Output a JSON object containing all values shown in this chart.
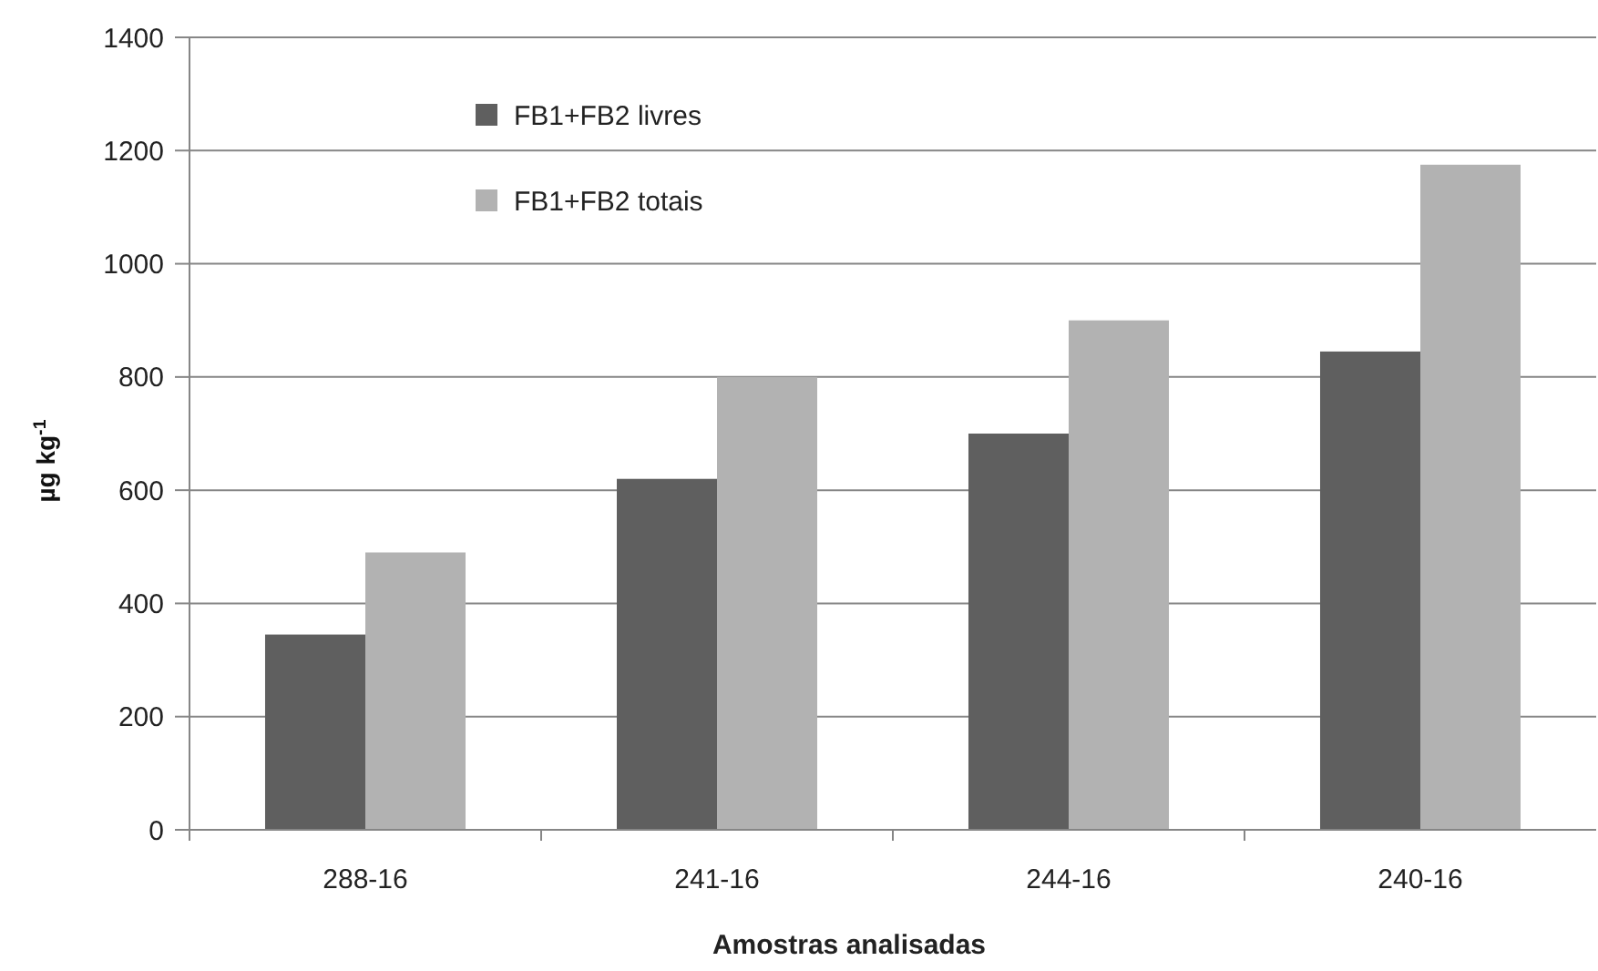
{
  "chart_data": {
    "type": "bar",
    "categories": [
      "288-16",
      "241-16",
      "244-16",
      "240-16"
    ],
    "series": [
      {
        "name": "FB1+FB2 livres",
        "color": "#5f5f5f",
        "values": [
          345,
          620,
          700,
          845
        ]
      },
      {
        "name": "FB1+FB2 totais",
        "color": "#b2b2b2",
        "values": [
          490,
          800,
          900,
          1175
        ]
      }
    ],
    "xlabel": "Amostras analisadas",
    "ylabel": "µg kg$^{-1}$",
    "ylim": [
      0,
      1400
    ],
    "yticks": [
      0,
      200,
      400,
      600,
      800,
      1000,
      1200,
      1400
    ],
    "grid": "y",
    "legend": "top left"
  }
}
